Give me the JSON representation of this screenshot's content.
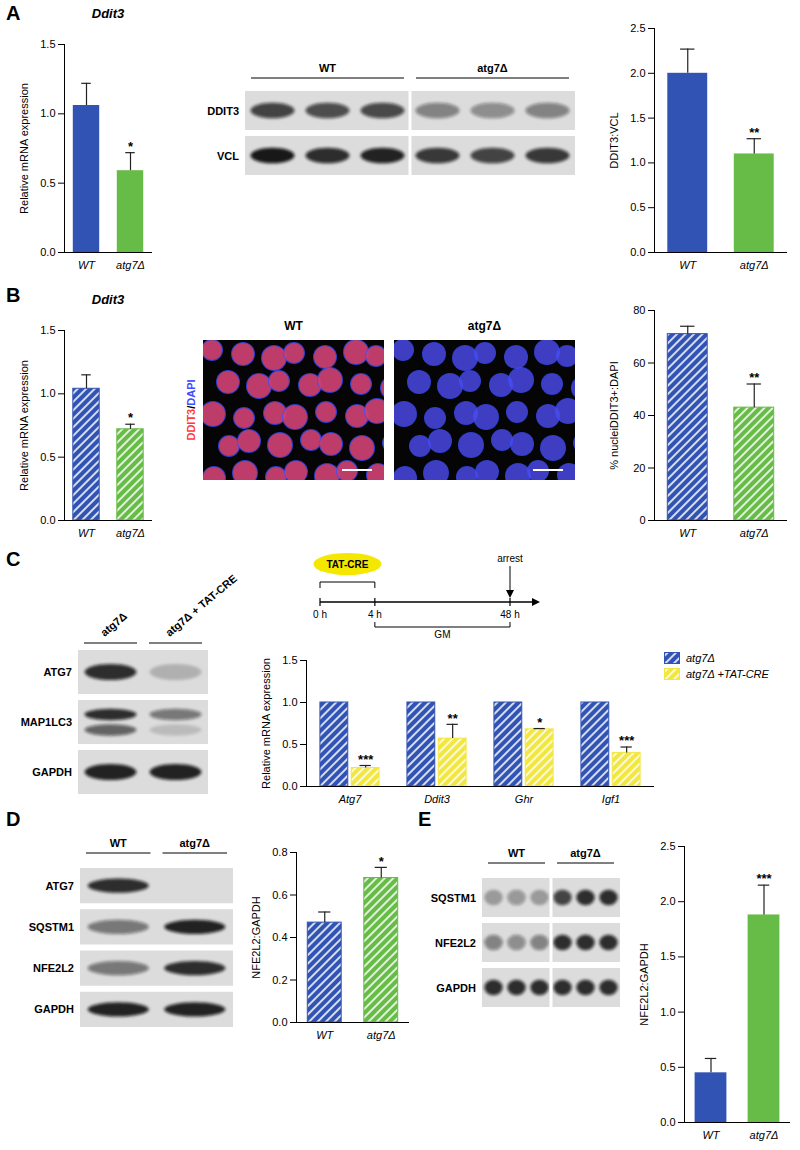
{
  "panels": [
    "A",
    "B",
    "C",
    "D",
    "E"
  ],
  "chart_data": [
    {
      "panel": "A",
      "type": "bar",
      "title": "Ddit3",
      "y_label": "Relative mRNA expression",
      "categories": [
        "WT",
        "atg7Δ"
      ],
      "values": [
        1.06,
        0.59
      ],
      "errors": [
        0.16,
        0.13
      ],
      "colors": [
        "#3153b3",
        "#67bb47"
      ],
      "annotations": [
        {
          "category": "atg7Δ",
          "text": "*"
        }
      ],
      "ylim": [
        0,
        1.5
      ],
      "yticks": [
        {
          "value": 0,
          "label": "0.0"
        },
        0.5,
        {
          "value": 1,
          "label": "1.0"
        },
        1.5
      ]
    },
    {
      "panel": "A",
      "type": "bar",
      "y_label": "DDIT3:VCL",
      "categories": [
        "WT",
        "atg7Δ"
      ],
      "values": [
        2.0,
        1.1
      ],
      "errors": [
        0.27,
        0.17
      ],
      "colors": [
        "#3153b3",
        "#67bb47"
      ],
      "annotations": [
        {
          "category": "atg7Δ",
          "text": "**"
        }
      ],
      "ylim": [
        0,
        2.5
      ],
      "yticks": [
        {
          "value": 0,
          "label": "0.0"
        },
        0.5,
        {
          "value": 1,
          "label": "1.0"
        },
        1.5,
        {
          "value": 2,
          "label": "2.0"
        },
        2.5
      ]
    },
    {
      "panel": "B",
      "type": "bar",
      "title": "Ddit3",
      "y_label": "Relative mRNA expression",
      "categories": [
        "WT",
        "atg7Δ"
      ],
      "values": [
        1.04,
        0.72
      ],
      "errors": [
        0.11,
        0.04
      ],
      "colors": [
        "#3153b3",
        "#67bb47"
      ],
      "annotations": [
        {
          "category": "atg7Δ",
          "text": "*"
        }
      ],
      "ylim": [
        0,
        1.5
      ],
      "yticks": [
        {
          "value": 0,
          "label": "0.0"
        },
        0.5,
        {
          "value": 1,
          "label": "1.0"
        },
        1.5
      ]
    },
    {
      "panel": "B",
      "type": "bar",
      "y_label": "% nucleiDDIT3+:DAPI",
      "categories": [
        "WT",
        "atg7Δ"
      ],
      "values": [
        71,
        43
      ],
      "errors": [
        3,
        9
      ],
      "colors": [
        "#3153b3",
        "#67bb47"
      ],
      "annotations": [
        {
          "category": "atg7Δ",
          "text": "**"
        }
      ],
      "ylim": [
        0,
        80
      ],
      "yticks": [
        0,
        20,
        40,
        60,
        80
      ]
    },
    {
      "panel": "C",
      "type": "bar",
      "y_label": "Relative mRNA expression",
      "categories": [
        "Atg7",
        "Ddit3",
        "Ghr",
        "Igf1"
      ],
      "series": [
        {
          "name": "atg7Δ",
          "color": "#3153b3",
          "values": [
            1,
            1,
            1,
            1
          ]
        },
        {
          "name": "atg7Δ +TAT-CRE",
          "color": "#f2e640",
          "values": [
            0.22,
            0.57,
            0.68,
            0.4
          ],
          "errors": [
            0.03,
            0.17,
            0.01,
            0.07
          ]
        }
      ],
      "annotations": [
        {
          "category": "Atg7",
          "series": "atg7Δ +TAT-CRE",
          "text": "***"
        },
        {
          "category": "Ddit3",
          "series": "atg7Δ +TAT-CRE",
          "text": "**"
        },
        {
          "category": "Ghr",
          "series": "atg7Δ +TAT-CRE",
          "text": "*"
        },
        {
          "category": "Igf1",
          "series": "atg7Δ +TAT-CRE",
          "text": "***"
        }
      ],
      "legend": "top-right",
      "ylim": [
        0,
        1.5
      ],
      "yticks": [
        {
          "value": 0,
          "label": "0.0"
        },
        0.5,
        {
          "value": 1,
          "label": "1.0"
        },
        1.5
      ]
    },
    {
      "panel": "D",
      "type": "bar",
      "y_label": "NFE2L2:GAPDH",
      "categories": [
        "WT",
        "atg7Δ"
      ],
      "values": [
        0.47,
        0.68
      ],
      "errors": [
        0.05,
        0.05
      ],
      "colors": [
        "#3153b3",
        "#67bb47"
      ],
      "annotations": [
        {
          "category": "atg7Δ",
          "text": "*"
        }
      ],
      "ylim": [
        0,
        0.8
      ],
      "yticks": [
        {
          "value": 0,
          "label": "0.0"
        },
        0.2,
        0.4,
        0.6,
        0.8
      ]
    },
    {
      "panel": "E",
      "type": "bar",
      "y_label": "NFE2L2:GAPDH",
      "categories": [
        "WT",
        "atg7Δ"
      ],
      "values": [
        0.45,
        1.88
      ],
      "errors": [
        0.13,
        0.27
      ],
      "colors": [
        "#3153b3",
        "#67bb47"
      ],
      "annotations": [
        {
          "category": "atg7Δ",
          "text": "***"
        }
      ],
      "ylim": [
        0,
        2.5
      ],
      "yticks": [
        {
          "value": 0,
          "label": "0.0"
        },
        0.5,
        {
          "value": 1,
          "label": "1.0"
        },
        1.5,
        {
          "value": 2,
          "label": "2.0"
        },
        2.5
      ]
    }
  ],
  "blots": [
    {
      "panel": "A",
      "groups": [
        "WT",
        "atg7Δ"
      ],
      "rows": [
        {
          "label": "DDIT3",
          "bands": [
            0.75,
            0.7,
            0.72,
            0.45,
            0.4,
            0.45
          ]
        },
        {
          "label": "VCL",
          "bands": [
            0.95,
            0.85,
            0.9,
            0.8,
            0.75,
            0.8
          ]
        }
      ]
    },
    {
      "panel": "C",
      "groups": [
        "atg7Δ",
        "atg7Δ + TAT-CRE"
      ],
      "rows": [
        {
          "label": "ATG7",
          "bands": [
            0.85,
            0.2
          ]
        },
        {
          "label": "MAP1LC3",
          "bands": [
            0.85,
            0.5
          ],
          "second_bands": [
            0.6,
            0.15
          ]
        },
        {
          "label": "GAPDH",
          "bands": [
            0.9,
            0.9
          ]
        }
      ]
    },
    {
      "panel": "D",
      "groups": [
        "WT",
        "atg7Δ"
      ],
      "rows": [
        {
          "label": "ATG7",
          "bands": [
            0.85,
            0
          ]
        },
        {
          "label": "SQSTM1",
          "bands": [
            0.5,
            0.9
          ]
        },
        {
          "label": "NFE2L2",
          "bands": [
            0.5,
            0.85
          ]
        },
        {
          "label": "GAPDH",
          "bands": [
            0.9,
            0.9
          ]
        }
      ]
    },
    {
      "panel": "E",
      "groups": [
        "WT",
        "atg7Δ"
      ],
      "rows": [
        {
          "label": "SQSTM1",
          "bands": [
            0.3,
            0.35,
            0.3,
            0.75,
            0.85,
            0.85
          ]
        },
        {
          "label": "NFE2L2",
          "bands": [
            0.45,
            0.4,
            0.45,
            0.85,
            0.85,
            0.85
          ]
        },
        {
          "label": "GAPDH",
          "bands": [
            0.85,
            0.85,
            0.85,
            0.85,
            0.85,
            0.85
          ]
        }
      ]
    }
  ],
  "microscopy": {
    "panel": "B",
    "overlay_label": [
      {
        "text": "DDIT3",
        "color": "#ff3b3b"
      },
      {
        "text": "/",
        "color": "#000000"
      },
      {
        "text": "DAPI",
        "color": "#3d4dff"
      }
    ],
    "images": [
      {
        "label": "WT",
        "ddit3_signal": 0.8
      },
      {
        "label": "atg7Δ",
        "ddit3_signal": 0.08
      }
    ]
  },
  "timeline": {
    "panel": "C",
    "treatment": "TAT-CRE",
    "event": "arrest",
    "medium": "GM",
    "times": [
      {
        "value": 0,
        "label": "0 h"
      },
      {
        "value": 4,
        "label": "4 h"
      },
      {
        "value": 48,
        "label": "48 h"
      }
    ]
  }
}
